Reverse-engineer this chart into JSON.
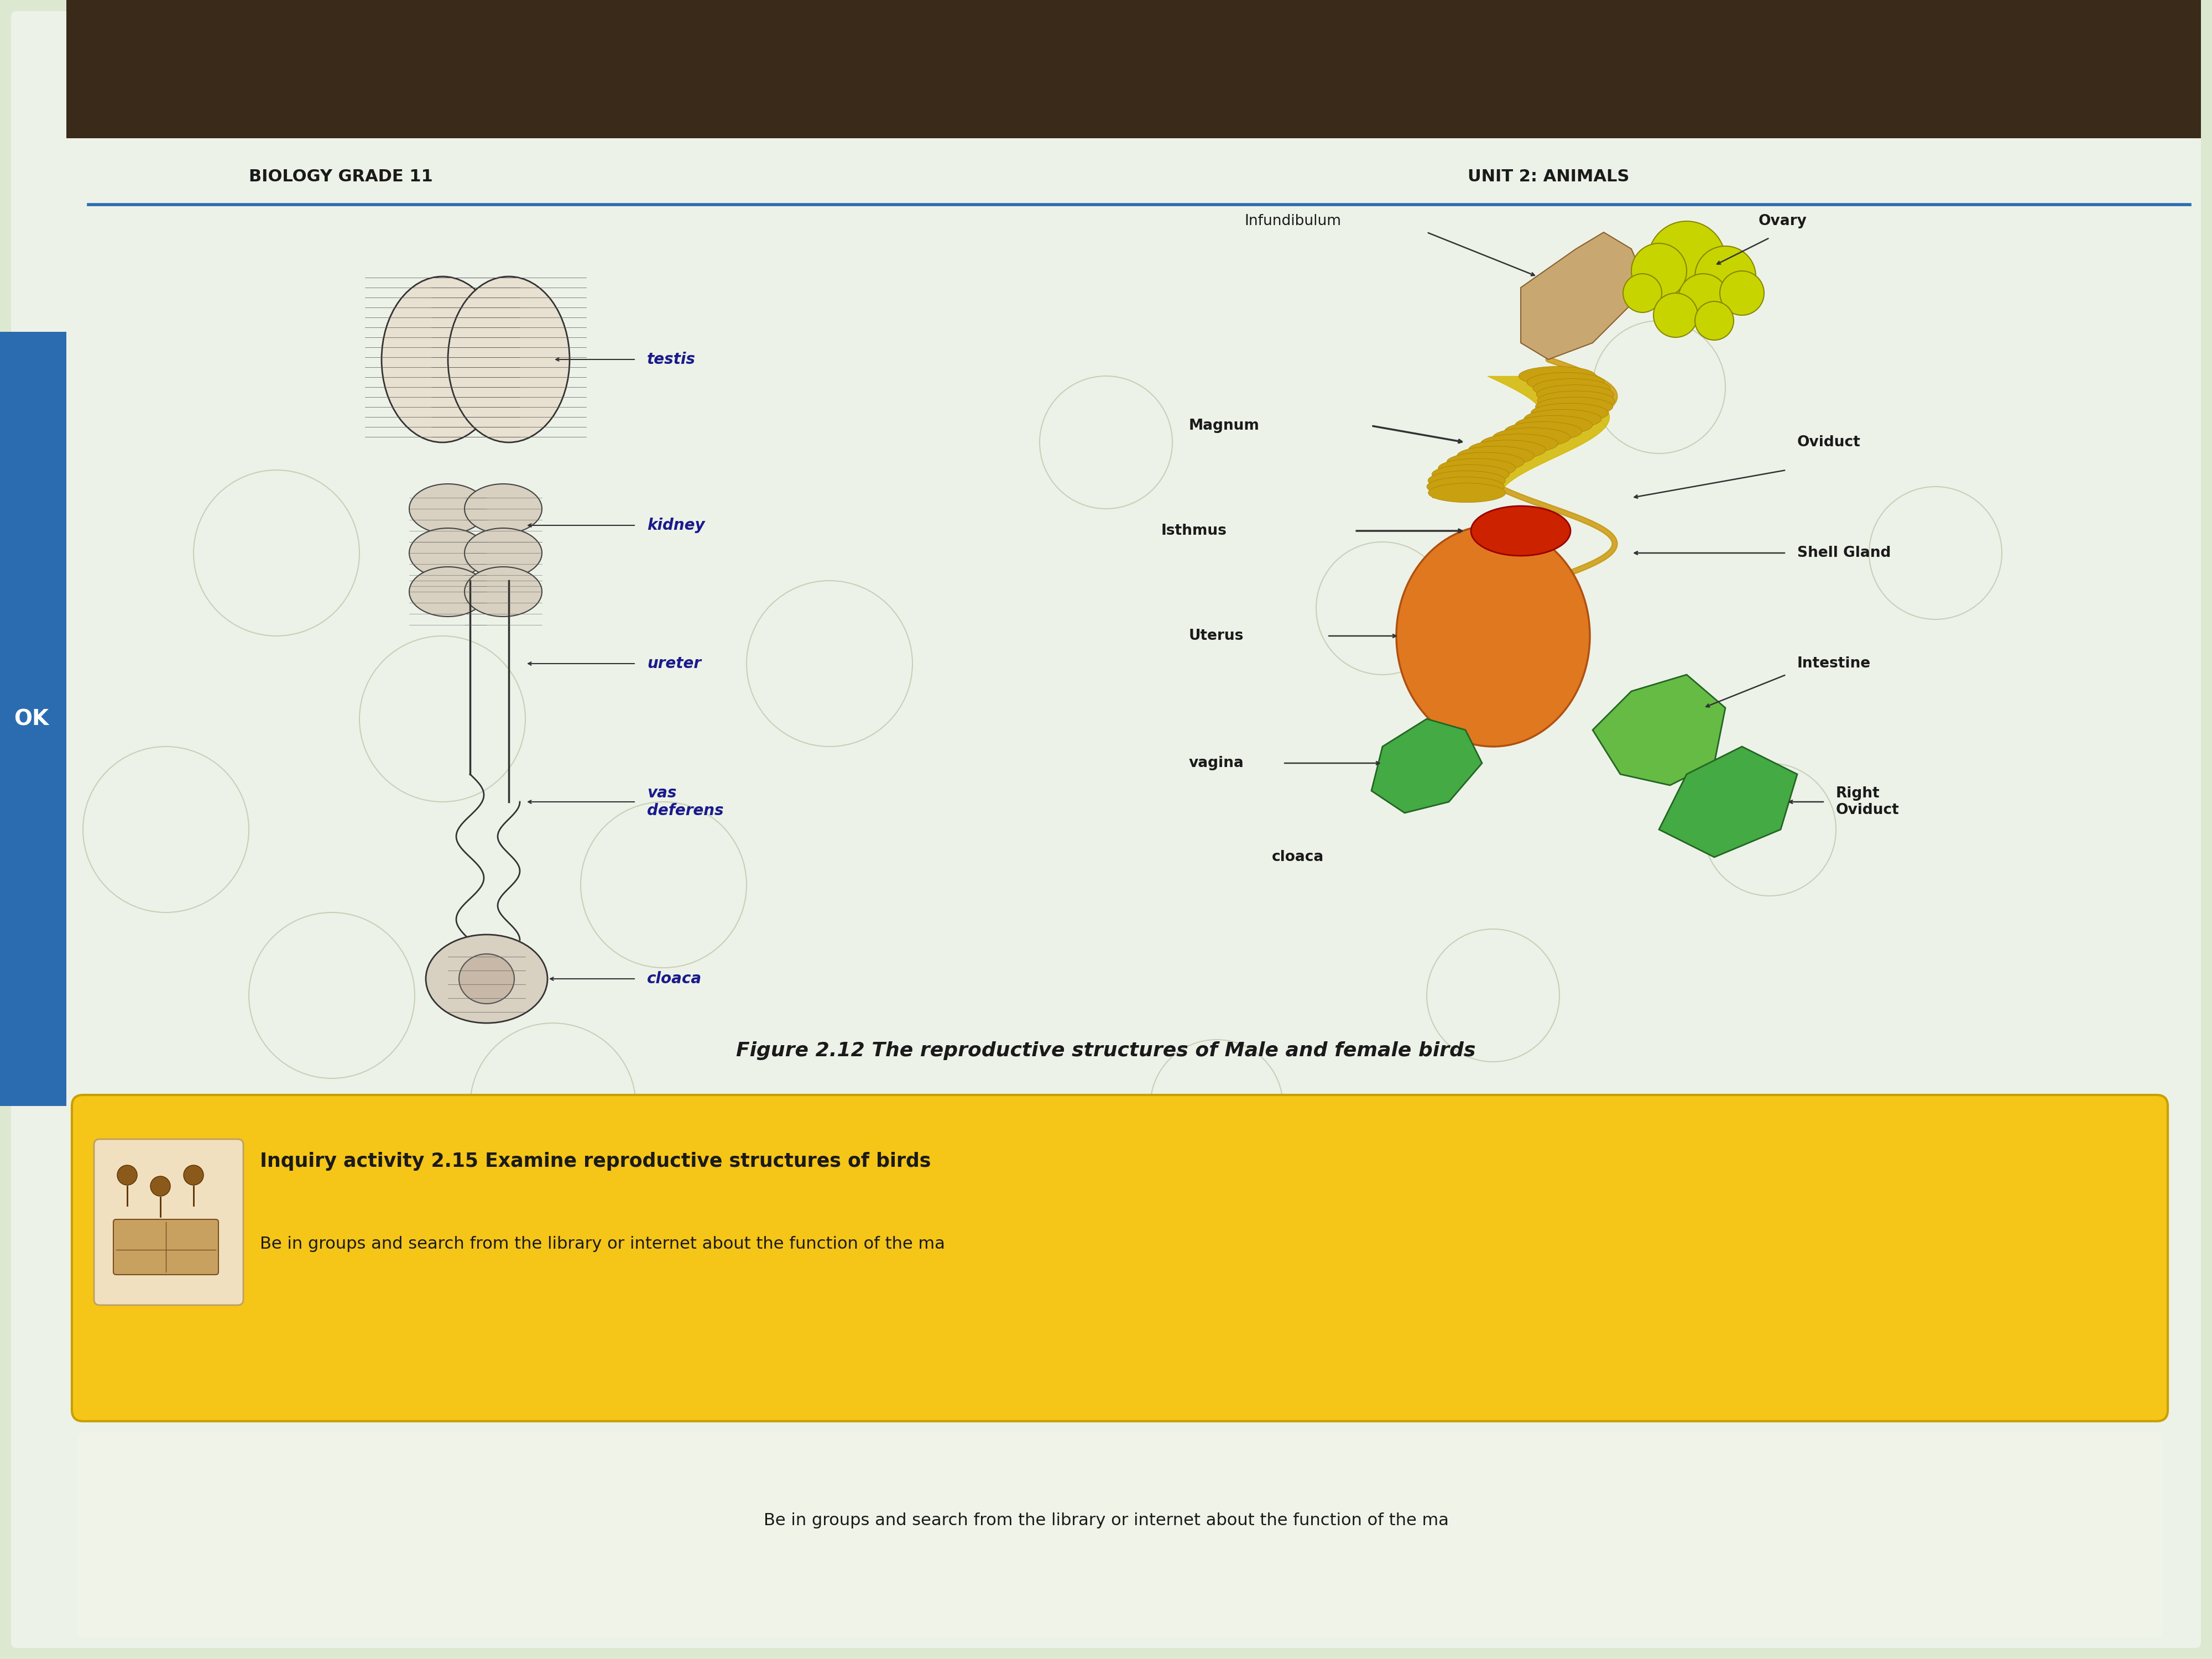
{
  "bg_color": "#dde8d0",
  "page_bg": "#e8ede0",
  "header_text_left": "BIOLOGY GRADE 11",
  "header_text_right": "UNIT 2: ANIMALS",
  "header_line_color": "#2b6cb0",
  "header_text_color": "#1a1a1a",
  "title_left_color": "#1a1a2e",
  "label_color_blue": "#1a1a8c",
  "label_color_black": "#1a1a1a",
  "figure_caption": "Figure 2.12 The reproductive structures of Male and female birds",
  "inquiry_bg": "#f5c518",
  "inquiry_title": "Inquiry activity 2.15 Examine reproductive structures of birds",
  "inquiry_text": "Be in groups and search from the library or internet about the function of the ma",
  "left_labels": [
    "testis",
    "kidney",
    "ureter",
    "vas\ndeferens",
    "cloaca"
  ],
  "right_labels": [
    "Infundibulum",
    "Ovary",
    "Magnum",
    "Oviduct",
    "Isthmus",
    "Shell Gland",
    "Uterus",
    "Intestine",
    "vagina",
    "Right\nOviduct",
    "cloaca"
  ],
  "colors": {
    "ovary_yellow": "#c8d400",
    "magnum_yellow": "#d4b800",
    "isthmus_red": "#cc2200",
    "uterus_orange": "#e07820",
    "vagina_green": "#44aa44",
    "intestine_green": "#66bb44",
    "oviduct_line": "#c8a020"
  }
}
